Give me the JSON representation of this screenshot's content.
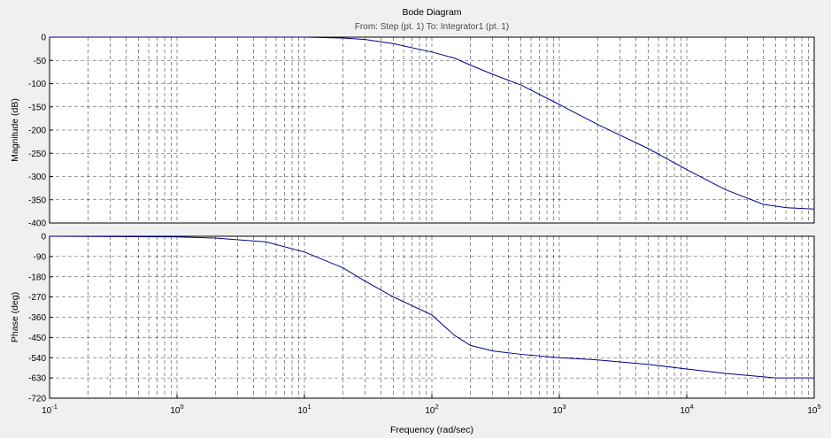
{
  "chart_data": {
    "type": "line",
    "title": "Bode Diagram",
    "subtitle": "From: Step (pt. 1)  To: Integrator1 (pt. 1)",
    "xlabel": "Frequency  (rad/sec)",
    "x_scale": "log",
    "xlim": [
      0.1,
      100000
    ],
    "x_ticks": [
      {
        "base": "10",
        "exp": "-1"
      },
      {
        "base": "10",
        "exp": "0"
      },
      {
        "base": "10",
        "exp": "1"
      },
      {
        "base": "10",
        "exp": "2"
      },
      {
        "base": "10",
        "exp": "3"
      },
      {
        "base": "10",
        "exp": "4"
      },
      {
        "base": "10",
        "exp": "5"
      }
    ],
    "grid": true,
    "line_color": "#00008b",
    "subplots": [
      {
        "id": "magnitude",
        "ylabel": "Magnitude (dB)",
        "ylim": [
          -400,
          0
        ],
        "y_ticks": [
          "0",
          "-50",
          "-100",
          "-150",
          "-200",
          "-250",
          "-300",
          "-350",
          "-400"
        ],
        "x": [
          0.1,
          1,
          3,
          10,
          20,
          30,
          50,
          100,
          150,
          200,
          300,
          500,
          1000,
          2000,
          5000,
          10000,
          20000,
          40000,
          60000,
          100000
        ],
        "y": [
          0,
          0,
          0,
          0,
          -2,
          -5,
          -14,
          -32,
          -45,
          -60,
          -80,
          -103,
          -145,
          -188,
          -240,
          -285,
          -328,
          -360,
          -367,
          -370
        ]
      },
      {
        "id": "phase",
        "ylabel": "Phase (deg)",
        "ylim": [
          -720,
          0
        ],
        "y_ticks": [
          "0",
          "-90",
          "-180",
          "-270",
          "-360",
          "-450",
          "-540",
          "-630",
          "-720"
        ],
        "x": [
          0.1,
          1,
          2,
          5,
          10,
          20,
          30,
          50,
          100,
          150,
          200,
          300,
          500,
          1000,
          2000,
          5000,
          10000,
          20000,
          50000,
          100000
        ],
        "y": [
          0,
          -3,
          -8,
          -25,
          -70,
          -140,
          -200,
          -270,
          -350,
          -440,
          -485,
          -510,
          -525,
          -540,
          -550,
          -570,
          -590,
          -610,
          -630,
          -630
        ]
      }
    ]
  }
}
